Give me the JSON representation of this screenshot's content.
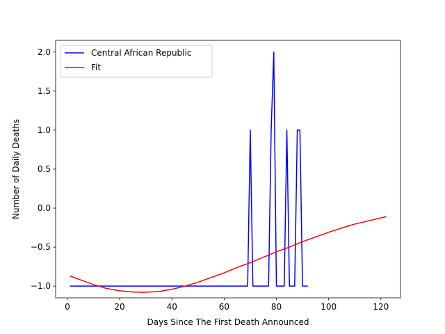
{
  "chart_data": {
    "type": "line",
    "title": "",
    "xlabel": "Days Since The First Death Announced",
    "ylabel": "Number of Daily Deaths",
    "xlim": [
      -4.5,
      127.5
    ],
    "ylim": [
      -1.15,
      2.15
    ],
    "xticks": [
      0,
      20,
      40,
      60,
      80,
      100,
      120
    ],
    "xtick_labels": [
      "0",
      "20",
      "40",
      "60",
      "80",
      "100",
      "120"
    ],
    "yticks": [
      -1.0,
      -0.5,
      0.0,
      0.5,
      1.0,
      1.5,
      2.0
    ],
    "ytick_labels": [
      "−1.0",
      "−0.5",
      "0.0",
      "0.5",
      "1.0",
      "1.5",
      "2.0"
    ],
    "grid": false,
    "legend_position": "upper-left",
    "series": [
      {
        "name": "Central African Republic",
        "color": "#0000ff",
        "x": [
          1,
          69,
          70,
          71,
          77,
          78,
          79,
          80,
          83,
          84,
          85,
          87,
          88,
          89,
          90,
          92
        ],
        "y": [
          -1,
          -1,
          1,
          -1,
          -1,
          1,
          2,
          -1,
          -1,
          1,
          -1,
          -1,
          1,
          1,
          -1,
          -1
        ]
      },
      {
        "name": "Fit",
        "color": "#ff0000",
        "x": [
          1,
          5,
          10,
          15,
          20,
          25,
          29,
          35,
          40,
          45,
          50,
          55,
          60,
          65,
          70,
          75,
          80,
          85,
          90,
          95,
          100,
          105,
          110,
          115,
          122
        ],
        "y": [
          -0.87,
          -0.92,
          -0.98,
          -1.03,
          -1.06,
          -1.075,
          -1.08,
          -1.07,
          -1.04,
          -1.0,
          -0.95,
          -0.89,
          -0.83,
          -0.76,
          -0.7,
          -0.63,
          -0.56,
          -0.5,
          -0.43,
          -0.37,
          -0.31,
          -0.255,
          -0.205,
          -0.165,
          -0.11
        ]
      }
    ]
  }
}
